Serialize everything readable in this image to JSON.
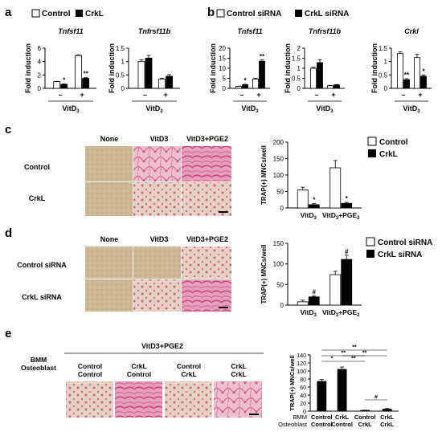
{
  "panel_letters": [
    "a",
    "b",
    "c",
    "d",
    "e"
  ],
  "legends": {
    "a": [
      "Control",
      "CrkL"
    ],
    "b": [
      "Control siRNA",
      "CrkL siRNA"
    ],
    "c": [
      "Control",
      "CrkL"
    ],
    "d": [
      "Control siRNA",
      "CrkL siRNA"
    ]
  },
  "image_labels": {
    "c_cols": [
      "None",
      "VitD3",
      "VitD3+PGE2"
    ],
    "c_rows": [
      "Control",
      "CrkL"
    ],
    "d_cols": [
      "None",
      "VitD3",
      "VitD3+PGE2"
    ],
    "d_rows": [
      "Control siRNA",
      "CrkL siRNA"
    ],
    "e_header": "VitD3+PGE2",
    "e_row_labels": [
      "BMM",
      "Osteoblast"
    ],
    "e_cols": [
      [
        "Control",
        "Control"
      ],
      [
        "CrkL",
        "Control"
      ],
      [
        "Control",
        "CrkL"
      ],
      [
        "CrkL",
        "CrkL"
      ]
    ]
  },
  "colors": {
    "control": "#ffffff",
    "crkl": "#000000",
    "stain_pink": "#e58ab0",
    "stain_beige": "#c9b48f"
  },
  "chart_data": [
    {
      "id": "a1",
      "type": "bar",
      "title": "Tnfsf11",
      "ylabel": "Fold induction",
      "xlabel": "VitD3",
      "categories": [
        "–",
        "+"
      ],
      "ylim": [
        0,
        6
      ],
      "yticks": [
        0,
        2,
        4,
        6
      ],
      "series": [
        {
          "name": "Control",
          "values": [
            1.0,
            4.9
          ],
          "errors": [
            0.05,
            0.1
          ]
        },
        {
          "name": "CrkL",
          "values": [
            0.6,
            1.5
          ],
          "errors": [
            0.05,
            0.1
          ]
        }
      ],
      "annotations": [
        {
          "text": "*",
          "category": 0,
          "series": 1
        },
        {
          "text": "**",
          "category": 1,
          "series": 1
        }
      ]
    },
    {
      "id": "a2",
      "type": "bar",
      "title": "Tnfrsf11b",
      "ylabel": "Fold induction",
      "xlabel": "VitD3",
      "categories": [
        "–",
        "+"
      ],
      "ylim": [
        0,
        1.5
      ],
      "yticks": [
        0,
        0.5,
        1.0,
        1.5
      ],
      "series": [
        {
          "name": "Control",
          "values": [
            1.0,
            0.35
          ],
          "errors": [
            0.06,
            0.03
          ]
        },
        {
          "name": "CrkL",
          "values": [
            1.13,
            0.45
          ],
          "errors": [
            0.1,
            0.06
          ]
        }
      ],
      "annotations": []
    },
    {
      "id": "b1",
      "type": "bar",
      "title": "Tnfsf11",
      "ylabel": "Fold induction",
      "xlabel": "VitD3",
      "categories": [
        "–",
        "+"
      ],
      "ylim": [
        0,
        20
      ],
      "yticks": [
        0,
        5,
        10,
        15,
        20
      ],
      "series": [
        {
          "name": "Control siRNA",
          "values": [
            1.0,
            4.6
          ],
          "errors": [
            0.1,
            0.4
          ]
        },
        {
          "name": "CrkL siRNA",
          "values": [
            1.8,
            13.5
          ],
          "errors": [
            0.2,
            0.6
          ]
        }
      ],
      "annotations": [
        {
          "text": "*",
          "category": 0,
          "series": 1
        },
        {
          "text": "**",
          "category": 1,
          "series": 1
        }
      ]
    },
    {
      "id": "b2",
      "type": "bar",
      "title": "Tnfrsf11b",
      "ylabel": "Fold induction",
      "xlabel": "VitD3",
      "categories": [
        "–",
        "+"
      ],
      "ylim": [
        0,
        2.0
      ],
      "yticks": [
        0,
        0.5,
        1.0,
        1.5,
        2.0
      ],
      "series": [
        {
          "name": "Control siRNA",
          "values": [
            1.0,
            0.13
          ],
          "errors": [
            0.05,
            0.02
          ]
        },
        {
          "name": "CrkL siRNA",
          "values": [
            1.28,
            0.17
          ],
          "errors": [
            0.15,
            0.02
          ]
        }
      ],
      "annotations": []
    },
    {
      "id": "b3",
      "type": "bar",
      "title": "Crkl",
      "ylabel": "Fold induction",
      "xlabel": "VitD3",
      "categories": [
        "–",
        "+"
      ],
      "ylim": [
        0,
        1.5
      ],
      "yticks": [
        0,
        0.5,
        1.0,
        1.5
      ],
      "series": [
        {
          "name": "Control siRNA",
          "values": [
            1.3,
            1.15
          ],
          "errors": [
            0.06,
            0.12
          ]
        },
        {
          "name": "CrkL siRNA",
          "values": [
            0.32,
            0.45
          ],
          "errors": [
            0.04,
            0.05
          ]
        }
      ],
      "annotations": [
        {
          "text": "**",
          "category": 0,
          "series": 1
        },
        {
          "text": "*",
          "category": 1,
          "series": 1
        }
      ]
    },
    {
      "id": "c",
      "type": "bar",
      "title": "",
      "ylabel": "TRAP(+) MNCs/well",
      "xlabel": "",
      "categories": [
        "VitD3",
        "VitD3+PGE2"
      ],
      "ylim": [
        0,
        200
      ],
      "yticks": [
        0,
        50,
        100,
        150,
        200
      ],
      "series": [
        {
          "name": "Control",
          "values": [
            55,
            122
          ],
          "errors": [
            8,
            22
          ]
        },
        {
          "name": "CrkL",
          "values": [
            10,
            14
          ],
          "errors": [
            3,
            3
          ]
        }
      ],
      "annotations": [
        {
          "text": "*",
          "category": 0,
          "series": 1
        },
        {
          "text": "*",
          "category": 1,
          "series": 1
        }
      ]
    },
    {
      "id": "d",
      "type": "bar",
      "title": "",
      "ylabel": "TRAP(+) MNCs/well",
      "xlabel": "",
      "categories": [
        "VitD3",
        "VitD3+PGE2"
      ],
      "ylim": [
        0,
        150
      ],
      "yticks": [
        0,
        50,
        100,
        150
      ],
      "series": [
        {
          "name": "Control siRNA",
          "values": [
            8,
            74
          ],
          "errors": [
            4,
            8
          ]
        },
        {
          "name": "CrkL siRNA",
          "values": [
            20,
            111
          ],
          "errors": [
            2,
            10
          ]
        }
      ],
      "annotations": [
        {
          "text": "#",
          "category": 0,
          "series": 1
        },
        {
          "text": "#",
          "category": 1,
          "series": 1
        }
      ]
    },
    {
      "id": "e",
      "type": "bar",
      "title": "",
      "ylabel": "TRAP(+) MNCs/well",
      "xlabel": "",
      "categories": [
        [
          "Control",
          "Control"
        ],
        [
          "CrkL",
          "Control"
        ],
        [
          "Control",
          "CrkL"
        ],
        [
          "CrkL",
          "CrkL"
        ]
      ],
      "category_row_labels": [
        "BMM",
        "Osteoblast"
      ],
      "ylim": [
        0,
        140
      ],
      "yticks": [
        0,
        20,
        40,
        60,
        80,
        100,
        120,
        140
      ],
      "series": [
        {
          "name": "",
          "values": [
            74,
            104,
            2,
            5
          ],
          "errors": [
            5,
            6,
            0.5,
            1.5
          ]
        }
      ],
      "annotations": [
        {
          "text": "*",
          "from": 0,
          "to": 1
        },
        {
          "text": "**",
          "from": 0,
          "to": 2
        },
        {
          "text": "**",
          "from": 0,
          "to": 3
        },
        {
          "text": "**",
          "from": 1,
          "to": 2
        },
        {
          "text": "**",
          "from": 1,
          "to": 3
        },
        {
          "text": "#",
          "from": 2,
          "to": 3
        }
      ]
    }
  ]
}
